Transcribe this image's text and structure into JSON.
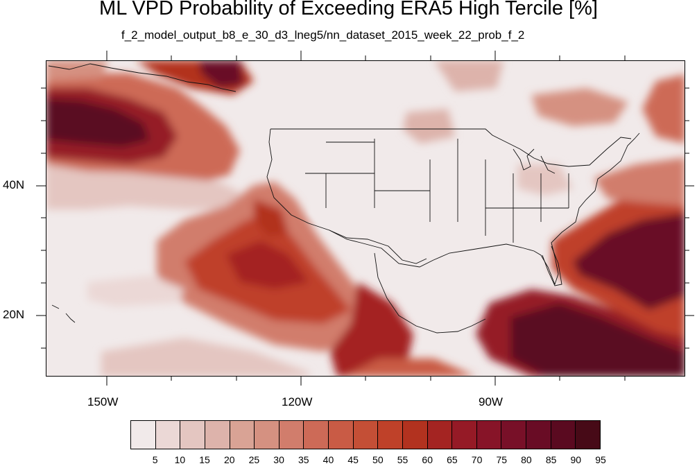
{
  "title": "ML VPD Probability of Exceeding ERA5 High Tercile [%]",
  "subtitle": "f_2_model_output_b8_e_30_d3_lneg5/nn_dataset_2015_week_22_prob_f_2",
  "lat_labels": [
    "40N",
    "20N"
  ],
  "lon_labels": [
    "150W",
    "120W",
    "90W"
  ],
  "colorbar": {
    "labels": [
      "5",
      "10",
      "15",
      "20",
      "25",
      "30",
      "35",
      "40",
      "45",
      "50",
      "55",
      "60",
      "65",
      "70",
      "75",
      "80",
      "85",
      "90",
      "95"
    ],
    "colors": [
      "#f1eaea",
      "#ebd8d6",
      "#e4c6c1",
      "#ddb3ab",
      "#d9a395",
      "#d59181",
      "#d17d6c",
      "#cd6a57",
      "#c95b45",
      "#c44f36",
      "#bf4129",
      "#b2321f",
      "#a42422",
      "#951a26",
      "#871428",
      "#781028",
      "#690c25",
      "#5a0a20",
      "#470a17"
    ]
  },
  "map_data": {
    "type": "filled-contour",
    "variable": "probability of exceeding ERA5 high tercile (%)",
    "lon_range": [
      -160,
      -63
    ],
    "lat_range": [
      10,
      58
    ]
  }
}
